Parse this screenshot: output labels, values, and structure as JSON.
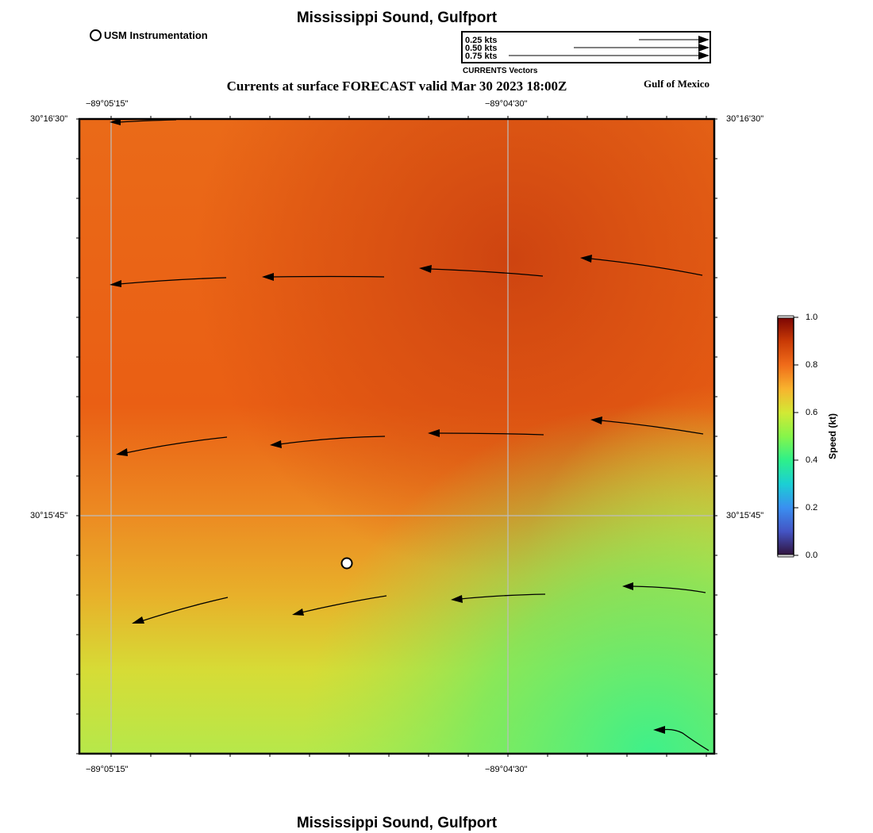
{
  "header": {
    "title": "Mississippi Sound, Gulfport",
    "subtitle": "Currents at surface FORECAST valid Mar 30 2023 18:00Z",
    "region": "Gulf of Mexico",
    "footer_title": "Mississippi Sound, Gulfport"
  },
  "station_legend": {
    "label": "USM Instrumentation"
  },
  "vector_legend": {
    "title": "CURRENTS Vectors",
    "entries": [
      {
        "label": "0.25 kts",
        "speed": 0.25
      },
      {
        "label": "0.50 kts",
        "speed": 0.5
      },
      {
        "label": "0.75 kts",
        "speed": 0.75
      }
    ]
  },
  "axes": {
    "x_ticks": [
      "−89°05'15\"",
      "−89°04'30\""
    ],
    "y_ticks": [
      "30°16'30\"",
      "30°15'45\""
    ]
  },
  "colorbar": {
    "label": "Speed (kt)",
    "ticks": [
      "1.0",
      "0.8",
      "0.6",
      "0.4",
      "0.2",
      "0.0"
    ],
    "min": 0.0,
    "max": 1.0
  },
  "colors": {
    "speed_high": "#d44a10",
    "speed_mid": "#ee7a1a",
    "speed_low": "#40ee88",
    "frame": "#000000",
    "grid": "#bbbbbb"
  }
}
